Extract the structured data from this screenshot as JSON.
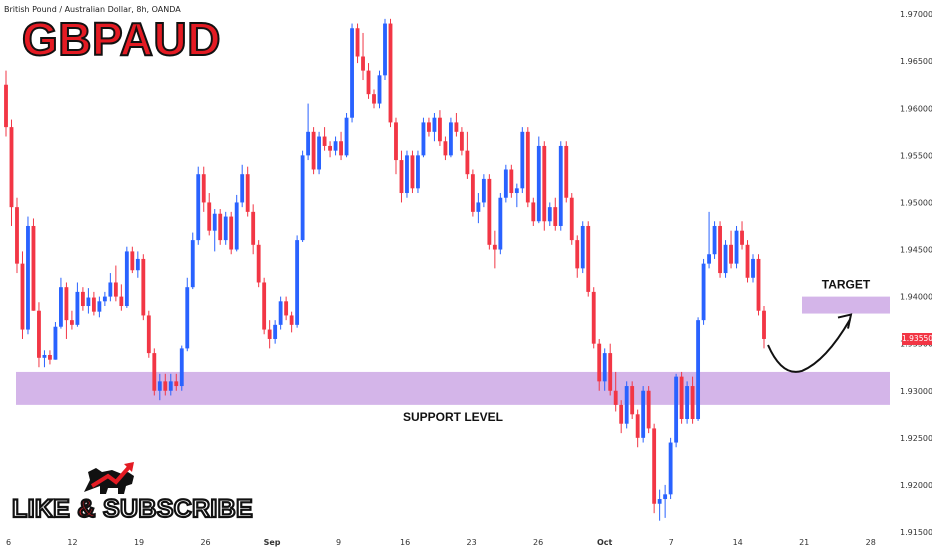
{
  "header": {
    "symbol_description": "British Pound / Australian Dollar, 8h, OANDA",
    "brand_title_main": "GBP",
    "brand_title_suffix": "AUD"
  },
  "annotations": {
    "target_label": "TARGET",
    "support_label": "SUPPORT LEVEL",
    "current_price": "1.93550",
    "cta_left": "LIKE ",
    "cta_amp": "&",
    "cta_right": " SUBSCRIBE"
  },
  "colors": {
    "bull": "#2962ff",
    "bear": "#f23645",
    "zone": "#c9a3e3",
    "arrow": "#111111"
  },
  "chart_data": {
    "type": "candlestick",
    "title": "",
    "ylim": [
      1.915,
      1.9715
    ],
    "y_ticks": [
      "1.97000",
      "1.96500",
      "1.96000",
      "1.95500",
      "1.95000",
      "1.94500",
      "1.94000",
      "1.93500",
      "1.93000",
      "1.92500",
      "1.92000",
      "1.91500"
    ],
    "x_ticks": [
      "6",
      "12",
      "19",
      "26",
      "Sep",
      "9",
      "16",
      "23",
      "26",
      "Oct",
      "7",
      "14",
      "21",
      "28"
    ],
    "support_zone": [
      1.9285,
      1.932
    ],
    "target_zone": [
      1.9382,
      1.94
    ],
    "last_price": 1.9355,
    "ohlc": [
      [
        1.9625,
        1.964,
        1.957,
        1.958
      ],
      [
        1.958,
        1.9588,
        1.9475,
        1.9495
      ],
      [
        1.9495,
        1.9505,
        1.9425,
        1.9435
      ],
      [
        1.9435,
        1.9448,
        1.9355,
        1.9365
      ],
      [
        1.9365,
        1.9485,
        1.936,
        1.9475
      ],
      [
        1.9475,
        1.9483,
        1.9385,
        1.9385
      ],
      [
        1.9385,
        1.9394,
        1.9325,
        1.9335
      ],
      [
        1.9335,
        1.9343,
        1.9325,
        1.9338
      ],
      [
        1.9338,
        1.9343,
        1.9328,
        1.9333
      ],
      [
        1.9333,
        1.9373,
        1.9333,
        1.9368
      ],
      [
        1.9368,
        1.942,
        1.9366,
        1.941
      ],
      [
        1.941,
        1.9415,
        1.9355,
        1.9375
      ],
      [
        1.9375,
        1.9385,
        1.9365,
        1.937
      ],
      [
        1.937,
        1.9415,
        1.9368,
        1.9405
      ],
      [
        1.9405,
        1.941,
        1.9385,
        1.939
      ],
      [
        1.939,
        1.9409,
        1.9382,
        1.9399
      ],
      [
        1.9399,
        1.9405,
        1.938,
        1.9384
      ],
      [
        1.9384,
        1.94,
        1.9378,
        1.9395
      ],
      [
        1.9395,
        1.9405,
        1.939,
        1.94
      ],
      [
        1.94,
        1.9425,
        1.9395,
        1.9415
      ],
      [
        1.9415,
        1.9433,
        1.9395,
        1.94
      ],
      [
        1.94,
        1.9413,
        1.9385,
        1.939
      ],
      [
        1.939,
        1.9453,
        1.9388,
        1.9448
      ],
      [
        1.9448,
        1.9453,
        1.9425,
        1.9428
      ],
      [
        1.9428,
        1.9448,
        1.942,
        1.944
      ],
      [
        1.944,
        1.9445,
        1.9375,
        1.938
      ],
      [
        1.938,
        1.9385,
        1.9335,
        1.934
      ],
      [
        1.934,
        1.9345,
        1.9295,
        1.93
      ],
      [
        1.93,
        1.9318,
        1.929,
        1.931
      ],
      [
        1.931,
        1.9318,
        1.9295,
        1.93
      ],
      [
        1.93,
        1.9318,
        1.9295,
        1.931
      ],
      [
        1.931,
        1.9318,
        1.93,
        1.9305
      ],
      [
        1.9305,
        1.9348,
        1.93,
        1.9345
      ],
      [
        1.9345,
        1.942,
        1.9342,
        1.941
      ],
      [
        1.941,
        1.9468,
        1.9408,
        1.946
      ],
      [
        1.946,
        1.9538,
        1.9455,
        1.953
      ],
      [
        1.953,
        1.9538,
        1.949,
        1.95
      ],
      [
        1.95,
        1.951,
        1.9465,
        1.947
      ],
      [
        1.947,
        1.9493,
        1.9448,
        1.9488
      ],
      [
        1.9488,
        1.9493,
        1.9455,
        1.946
      ],
      [
        1.946,
        1.949,
        1.9455,
        1.9485
      ],
      [
        1.9485,
        1.949,
        1.9445,
        1.945
      ],
      [
        1.945,
        1.9508,
        1.9448,
        1.95
      ],
      [
        1.95,
        1.954,
        1.9495,
        1.953
      ],
      [
        1.953,
        1.9538,
        1.9485,
        1.949
      ],
      [
        1.949,
        1.9498,
        1.9445,
        1.9455
      ],
      [
        1.9455,
        1.946,
        1.941,
        1.9415
      ],
      [
        1.9415,
        1.942,
        1.936,
        1.9365
      ],
      [
        1.9365,
        1.9375,
        1.9345,
        1.9355
      ],
      [
        1.9355,
        1.9375,
        1.935,
        1.937
      ],
      [
        1.937,
        1.94,
        1.9365,
        1.9395
      ],
      [
        1.9395,
        1.94,
        1.9375,
        1.938
      ],
      [
        1.938,
        1.9384,
        1.9362,
        1.937
      ],
      [
        1.937,
        1.9465,
        1.9367,
        1.946
      ],
      [
        1.946,
        1.9555,
        1.9458,
        1.955
      ],
      [
        1.955,
        1.9605,
        1.9545,
        1.9575
      ],
      [
        1.9575,
        1.958,
        1.953,
        1.9535
      ],
      [
        1.9535,
        1.9575,
        1.953,
        1.957
      ],
      [
        1.957,
        1.958,
        1.9555,
        1.956
      ],
      [
        1.956,
        1.9565,
        1.9548,
        1.9555
      ],
      [
        1.9555,
        1.957,
        1.955,
        1.9565
      ],
      [
        1.9565,
        1.9575,
        1.9545,
        1.955
      ],
      [
        1.955,
        1.9595,
        1.9548,
        1.959
      ],
      [
        1.959,
        1.969,
        1.9585,
        1.9685
      ],
      [
        1.9685,
        1.969,
        1.9648,
        1.9655
      ],
      [
        1.9655,
        1.968,
        1.963,
        1.964
      ],
      [
        1.964,
        1.9648,
        1.961,
        1.9615
      ],
      [
        1.9615,
        1.962,
        1.96,
        1.9605
      ],
      [
        1.9605,
        1.964,
        1.96,
        1.9635
      ],
      [
        1.9635,
        1.9695,
        1.963,
        1.969
      ],
      [
        1.969,
        1.9695,
        1.958,
        1.9585
      ],
      [
        1.9585,
        1.959,
        1.953,
        1.9545
      ],
      [
        1.9545,
        1.9555,
        1.95,
        1.951
      ],
      [
        1.951,
        1.9555,
        1.9505,
        1.955
      ],
      [
        1.955,
        1.9555,
        1.951,
        1.9515
      ],
      [
        1.9515,
        1.9555,
        1.951,
        1.955
      ],
      [
        1.955,
        1.959,
        1.9548,
        1.9585
      ],
      [
        1.9585,
        1.959,
        1.957,
        1.9575
      ],
      [
        1.9575,
        1.9595,
        1.9565,
        1.959
      ],
      [
        1.959,
        1.9598,
        1.956,
        1.9565
      ],
      [
        1.9565,
        1.957,
        1.9545,
        1.955
      ],
      [
        1.955,
        1.959,
        1.9548,
        1.9585
      ],
      [
        1.9585,
        1.9595,
        1.957,
        1.9575
      ],
      [
        1.9575,
        1.958,
        1.955,
        1.9555
      ],
      [
        1.9555,
        1.9575,
        1.9525,
        1.953
      ],
      [
        1.953,
        1.9535,
        1.9485,
        1.949
      ],
      [
        1.949,
        1.951,
        1.9478,
        1.95
      ],
      [
        1.95,
        1.953,
        1.9495,
        1.9525
      ],
      [
        1.9525,
        1.953,
        1.945,
        1.9455
      ],
      [
        1.9455,
        1.947,
        1.943,
        1.945
      ],
      [
        1.945,
        1.951,
        1.9445,
        1.9505
      ],
      [
        1.9505,
        1.954,
        1.95,
        1.9535
      ],
      [
        1.9535,
        1.954,
        1.9505,
        1.951
      ],
      [
        1.951,
        1.952,
        1.9495,
        1.9515
      ],
      [
        1.9515,
        1.958,
        1.951,
        1.9575
      ],
      [
        1.9575,
        1.958,
        1.9495,
        1.95
      ],
      [
        1.95,
        1.9505,
        1.9475,
        1.948
      ],
      [
        1.948,
        1.957,
        1.9478,
        1.956
      ],
      [
        1.956,
        1.9565,
        1.947,
        1.948
      ],
      [
        1.948,
        1.95,
        1.9475,
        1.9495
      ],
      [
        1.9495,
        1.9505,
        1.947,
        1.9475
      ],
      [
        1.9475,
        1.9565,
        1.947,
        1.956
      ],
      [
        1.956,
        1.9565,
        1.95,
        1.9505
      ],
      [
        1.9505,
        1.951,
        1.9455,
        1.946
      ],
      [
        1.946,
        1.9465,
        1.942,
        1.943
      ],
      [
        1.943,
        1.948,
        1.9425,
        1.9475
      ],
      [
        1.9475,
        1.948,
        1.94,
        1.9405
      ],
      [
        1.9405,
        1.941,
        1.9345,
        1.935
      ],
      [
        1.935,
        1.9355,
        1.93,
        1.931
      ],
      [
        1.931,
        1.9345,
        1.93,
        1.934
      ],
      [
        1.934,
        1.935,
        1.9295,
        1.93
      ],
      [
        1.93,
        1.932,
        1.9278,
        1.9285
      ],
      [
        1.9285,
        1.929,
        1.9255,
        1.9265
      ],
      [
        1.9265,
        1.931,
        1.926,
        1.9305
      ],
      [
        1.9305,
        1.931,
        1.927,
        1.9275
      ],
      [
        1.9275,
        1.928,
        1.924,
        1.925
      ],
      [
        1.925,
        1.9305,
        1.9245,
        1.93
      ],
      [
        1.93,
        1.9305,
        1.9255,
        1.926
      ],
      [
        1.926,
        1.9265,
        1.917,
        1.918
      ],
      [
        1.918,
        1.9195,
        1.9162,
        1.9185
      ],
      [
        1.9185,
        1.92,
        1.9165,
        1.919
      ],
      [
        1.919,
        1.925,
        1.9185,
        1.9245
      ],
      [
        1.9245,
        1.9318,
        1.924,
        1.9315
      ],
      [
        1.9315,
        1.932,
        1.9265,
        1.927
      ],
      [
        1.927,
        1.931,
        1.9265,
        1.9305
      ],
      [
        1.9305,
        1.9315,
        1.9265,
        1.927
      ],
      [
        1.927,
        1.9378,
        1.9268,
        1.9375
      ],
      [
        1.9375,
        1.944,
        1.937,
        1.9435
      ],
      [
        1.9435,
        1.949,
        1.943,
        1.9445
      ],
      [
        1.9445,
        1.948,
        1.944,
        1.9475
      ],
      [
        1.9475,
        1.948,
        1.942,
        1.9425
      ],
      [
        1.9425,
        1.946,
        1.942,
        1.9455
      ],
      [
        1.9455,
        1.947,
        1.943,
        1.9435
      ],
      [
        1.9435,
        1.9475,
        1.943,
        1.947
      ],
      [
        1.947,
        1.948,
        1.945,
        1.9455
      ],
      [
        1.9455,
        1.946,
        1.9415,
        1.942
      ],
      [
        1.942,
        1.9445,
        1.9415,
        1.944
      ],
      [
        1.944,
        1.9445,
        1.938,
        1.9385
      ],
      [
        1.9385,
        1.939,
        1.9345,
        1.9355
      ]
    ]
  }
}
